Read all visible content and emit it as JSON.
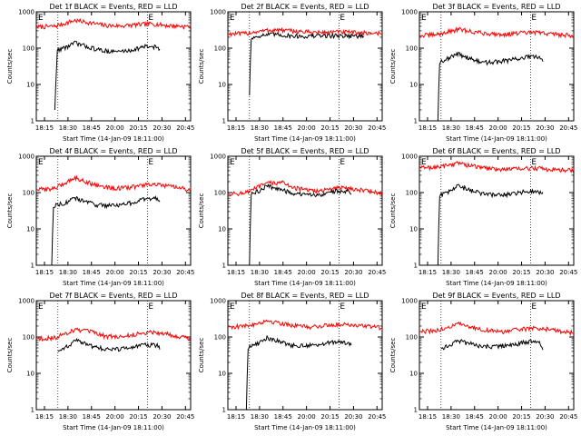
{
  "chart_data": [
    {
      "type": "line",
      "title": "Det 1f BLACK = Events, RED = LLD",
      "ylabel": "Counts/sec",
      "xlabel": "Start Time (14-Jan-09 18:11:00)",
      "y_scale": "log",
      "ylim": [
        1,
        1000
      ],
      "y_ticks": [
        "1",
        "10",
        "100",
        "1000"
      ],
      "x_ticks": [
        "18:15",
        "18:30",
        "18:45",
        "20:00",
        "20:15",
        "20:30",
        "20:45"
      ],
      "markers": [
        "E",
        "E"
      ],
      "series": [
        {
          "color": "#ff0000",
          "x": [
            0,
            0.12,
            0.25,
            0.35,
            0.45,
            0.55,
            0.65,
            0.75,
            0.85,
            1
          ],
          "values": [
            380,
            400,
            580,
            500,
            420,
            410,
            440,
            470,
            420,
            390
          ]
        },
        {
          "color": "#000000",
          "x": [
            0.12,
            0.135,
            0.14,
            0.2,
            0.25,
            0.3,
            0.4,
            0.5,
            0.6,
            0.7,
            0.78,
            0.8
          ],
          "values": [
            2,
            80,
            90,
            110,
            140,
            120,
            90,
            80,
            85,
            110,
            110,
            90
          ]
        }
      ]
    },
    {
      "type": "line",
      "title": "Det 2f BLACK = Events, RED = LLD",
      "ylabel": "Counts/sec",
      "xlabel": "Start Time (14-Jan-09 18:11:00)",
      "y_scale": "log",
      "ylim": [
        1,
        1000
      ],
      "y_ticks": [
        "1",
        "10",
        "100",
        "1000"
      ],
      "x_ticks": [
        "18:15",
        "18:30",
        "18:45",
        "20:00",
        "20:15",
        "20:30",
        "20:45"
      ],
      "markers": [
        "E",
        "E"
      ],
      "series": [
        {
          "color": "#ff0000",
          "x": [
            0,
            0.1,
            0.2,
            0.3,
            0.4,
            0.5,
            0.6,
            0.7,
            0.8,
            0.9,
            1
          ],
          "values": [
            250,
            250,
            290,
            320,
            300,
            280,
            270,
            280,
            270,
            260,
            260
          ]
        },
        {
          "color": "#000000",
          "x": [
            0.14,
            0.15,
            0.16,
            0.2,
            0.25,
            0.3,
            0.4,
            0.5,
            0.6,
            0.7,
            0.8,
            0.88
          ],
          "values": [
            5,
            180,
            190,
            220,
            230,
            240,
            220,
            210,
            220,
            220,
            220,
            210
          ]
        }
      ]
    },
    {
      "type": "line",
      "title": "Det 3f BLACK = Events, RED = LLD",
      "ylabel": "Counts/sec",
      "xlabel": "Start Time (14-Jan-09 18:11:00)",
      "y_scale": "log",
      "ylim": [
        1,
        1000
      ],
      "y_ticks": [
        "1",
        "10",
        "100",
        "1000"
      ],
      "x_ticks": [
        "18:15",
        "18:30",
        "18:45",
        "20:00",
        "20:15",
        "20:30",
        "20:45"
      ],
      "markers": [
        "E",
        "E"
      ],
      "series": [
        {
          "color": "#ff0000",
          "x": [
            0,
            0.12,
            0.25,
            0.35,
            0.45,
            0.55,
            0.65,
            0.75,
            0.85,
            1
          ],
          "values": [
            220,
            240,
            330,
            280,
            250,
            240,
            260,
            270,
            250,
            220
          ]
        },
        {
          "color": "#000000",
          "x": [
            0.12,
            0.13,
            0.14,
            0.2,
            0.25,
            0.3,
            0.4,
            0.5,
            0.6,
            0.7,
            0.78,
            0.8
          ],
          "values": [
            1,
            38,
            45,
            55,
            70,
            58,
            40,
            42,
            48,
            58,
            55,
            45
          ]
        }
      ]
    },
    {
      "type": "line",
      "title": "Det 4f BLACK = Events, RED = LLD",
      "ylabel": "Counts/sec",
      "xlabel": "Start Time (14-Jan-09 18:11:00)",
      "y_scale": "log",
      "ylim": [
        1,
        1000
      ],
      "y_ticks": [
        "1",
        "10",
        "100",
        "1000"
      ],
      "x_ticks": [
        "18:15",
        "18:30",
        "18:45",
        "20:00",
        "20:15",
        "20:30",
        "20:45"
      ],
      "markers": [
        "E",
        "E"
      ],
      "series": [
        {
          "color": "#ff0000",
          "x": [
            0,
            0.12,
            0.25,
            0.35,
            0.45,
            0.55,
            0.65,
            0.75,
            0.85,
            1
          ],
          "values": [
            120,
            130,
            260,
            180,
            140,
            130,
            150,
            170,
            150,
            120
          ]
        },
        {
          "color": "#000000",
          "x": [
            0.1,
            0.11,
            0.12,
            0.2,
            0.25,
            0.3,
            0.4,
            0.5,
            0.6,
            0.7,
            0.78,
            0.8
          ],
          "values": [
            1,
            40,
            45,
            55,
            70,
            60,
            45,
            45,
            50,
            65,
            70,
            55
          ]
        }
      ]
    },
    {
      "type": "line",
      "title": "Det 5f BLACK = Events, RED = LLD",
      "ylabel": "Counts/sec",
      "xlabel": "Start Time (14-Jan-09 18:11:00)",
      "y_scale": "log",
      "ylim": [
        1,
        1000
      ],
      "y_ticks": [
        "1",
        "10",
        "100",
        "1000"
      ],
      "x_ticks": [
        "18:15",
        "18:30",
        "18:45",
        "20:00",
        "20:15",
        "20:30",
        "20:45"
      ],
      "markers": [
        "E",
        "E"
      ],
      "series": [
        {
          "color": "#ff0000",
          "x": [
            0,
            0.12,
            0.25,
            0.35,
            0.45,
            0.55,
            0.65,
            0.75,
            0.85,
            1
          ],
          "values": [
            90,
            100,
            180,
            190,
            130,
            110,
            120,
            140,
            120,
            95
          ]
        },
        {
          "color": "#000000",
          "x": [
            0.14,
            0.15,
            0.16,
            0.2,
            0.25,
            0.3,
            0.4,
            0.5,
            0.6,
            0.7,
            0.78,
            0.8
          ],
          "values": [
            1,
            85,
            95,
            110,
            150,
            140,
            100,
            85,
            90,
            110,
            110,
            95
          ]
        }
      ]
    },
    {
      "type": "line",
      "title": "Det 6f BLACK = Events, RED = LLD",
      "ylabel": "Counts/sec",
      "xlabel": "Start Time (14-Jan-09 18:11:00)",
      "y_scale": "log",
      "ylim": [
        1,
        1000
      ],
      "y_ticks": [
        "1",
        "10",
        "100",
        "1000"
      ],
      "x_ticks": [
        "18:15",
        "18:30",
        "18:45",
        "20:00",
        "20:15",
        "20:30",
        "20:45"
      ],
      "markers": [
        "E",
        "E"
      ],
      "series": [
        {
          "color": "#ff0000",
          "x": [
            0,
            0.12,
            0.25,
            0.35,
            0.45,
            0.55,
            0.65,
            0.75,
            0.85,
            1
          ],
          "values": [
            480,
            500,
            650,
            530,
            460,
            440,
            450,
            470,
            440,
            400
          ]
        },
        {
          "color": "#000000",
          "x": [
            0.12,
            0.13,
            0.14,
            0.2,
            0.25,
            0.3,
            0.4,
            0.5,
            0.6,
            0.7,
            0.78,
            0.8
          ],
          "values": [
            1,
            75,
            85,
            110,
            150,
            130,
            95,
            85,
            90,
            110,
            105,
            95
          ]
        }
      ]
    },
    {
      "type": "line",
      "title": "Det 7f BLACK = Events, RED = LLD",
      "ylabel": "Counts/sec",
      "xlabel": "Start Time (14-Jan-09 18:11:00)",
      "y_scale": "log",
      "ylim": [
        1,
        1000
      ],
      "y_ticks": [
        "1",
        "10",
        "100",
        "1000"
      ],
      "x_ticks": [
        "18:15",
        "18:30",
        "18:45",
        "20:00",
        "20:15",
        "20:30",
        "20:45"
      ],
      "markers": [
        "E",
        "E"
      ],
      "series": [
        {
          "color": "#ff0000",
          "x": [
            0,
            0.12,
            0.25,
            0.35,
            0.45,
            0.55,
            0.65,
            0.75,
            0.85,
            1
          ],
          "values": [
            90,
            95,
            160,
            140,
            105,
            100,
            120,
            140,
            120,
            90
          ]
        },
        {
          "color": "#000000",
          "x": [
            0.14,
            0.2,
            0.25,
            0.3,
            0.4,
            0.5,
            0.6,
            0.7,
            0.78,
            0.8
          ],
          "values": [
            40,
            55,
            80,
            70,
            50,
            45,
            50,
            60,
            60,
            50
          ]
        }
      ]
    },
    {
      "type": "line",
      "title": "Det 8f BLACK = Events, RED = LLD",
      "ylabel": "Counts/sec",
      "xlabel": "Start Time (14-Jan-09 18:11:00)",
      "y_scale": "log",
      "ylim": [
        1,
        1000
      ],
      "y_ticks": [
        "1",
        "10",
        "100",
        "1000"
      ],
      "x_ticks": [
        "18:15",
        "18:30",
        "18:45",
        "20:00",
        "20:15",
        "20:30",
        "20:45"
      ],
      "markers": [
        "E",
        "E"
      ],
      "series": [
        {
          "color": "#ff0000",
          "x": [
            0,
            0.12,
            0.25,
            0.35,
            0.45,
            0.55,
            0.65,
            0.75,
            0.85,
            1
          ],
          "values": [
            190,
            200,
            280,
            240,
            200,
            190,
            210,
            230,
            210,
            180
          ]
        },
        {
          "color": "#000000",
          "x": [
            0.12,
            0.13,
            0.14,
            0.2,
            0.25,
            0.3,
            0.4,
            0.5,
            0.6,
            0.7,
            0.78,
            0.8
          ],
          "values": [
            1,
            45,
            55,
            70,
            95,
            85,
            60,
            58,
            62,
            75,
            70,
            60
          ]
        }
      ]
    },
    {
      "type": "line",
      "title": "Det 9f BLACK = Events, RED = LLD",
      "ylabel": "Counts/sec",
      "xlabel": "Start Time (14-Jan-09 18:11:00)",
      "y_scale": "log",
      "ylim": [
        1,
        1000
      ],
      "y_ticks": [
        "1",
        "10",
        "100",
        "1000"
      ],
      "x_ticks": [
        "18:15",
        "18:30",
        "18:45",
        "20:00",
        "20:15",
        "20:30",
        "20:45"
      ],
      "markers": [
        "E",
        "E"
      ],
      "series": [
        {
          "color": "#ff0000",
          "x": [
            0,
            0.12,
            0.25,
            0.35,
            0.45,
            0.55,
            0.65,
            0.75,
            0.85,
            1
          ],
          "values": [
            140,
            150,
            230,
            180,
            150,
            140,
            160,
            180,
            160,
            130
          ]
        },
        {
          "color": "#000000",
          "x": [
            0.14,
            0.2,
            0.25,
            0.3,
            0.4,
            0.5,
            0.6,
            0.7,
            0.78,
            0.8
          ],
          "values": [
            48,
            60,
            80,
            70,
            55,
            55,
            60,
            75,
            70,
            50
          ]
        }
      ]
    }
  ]
}
